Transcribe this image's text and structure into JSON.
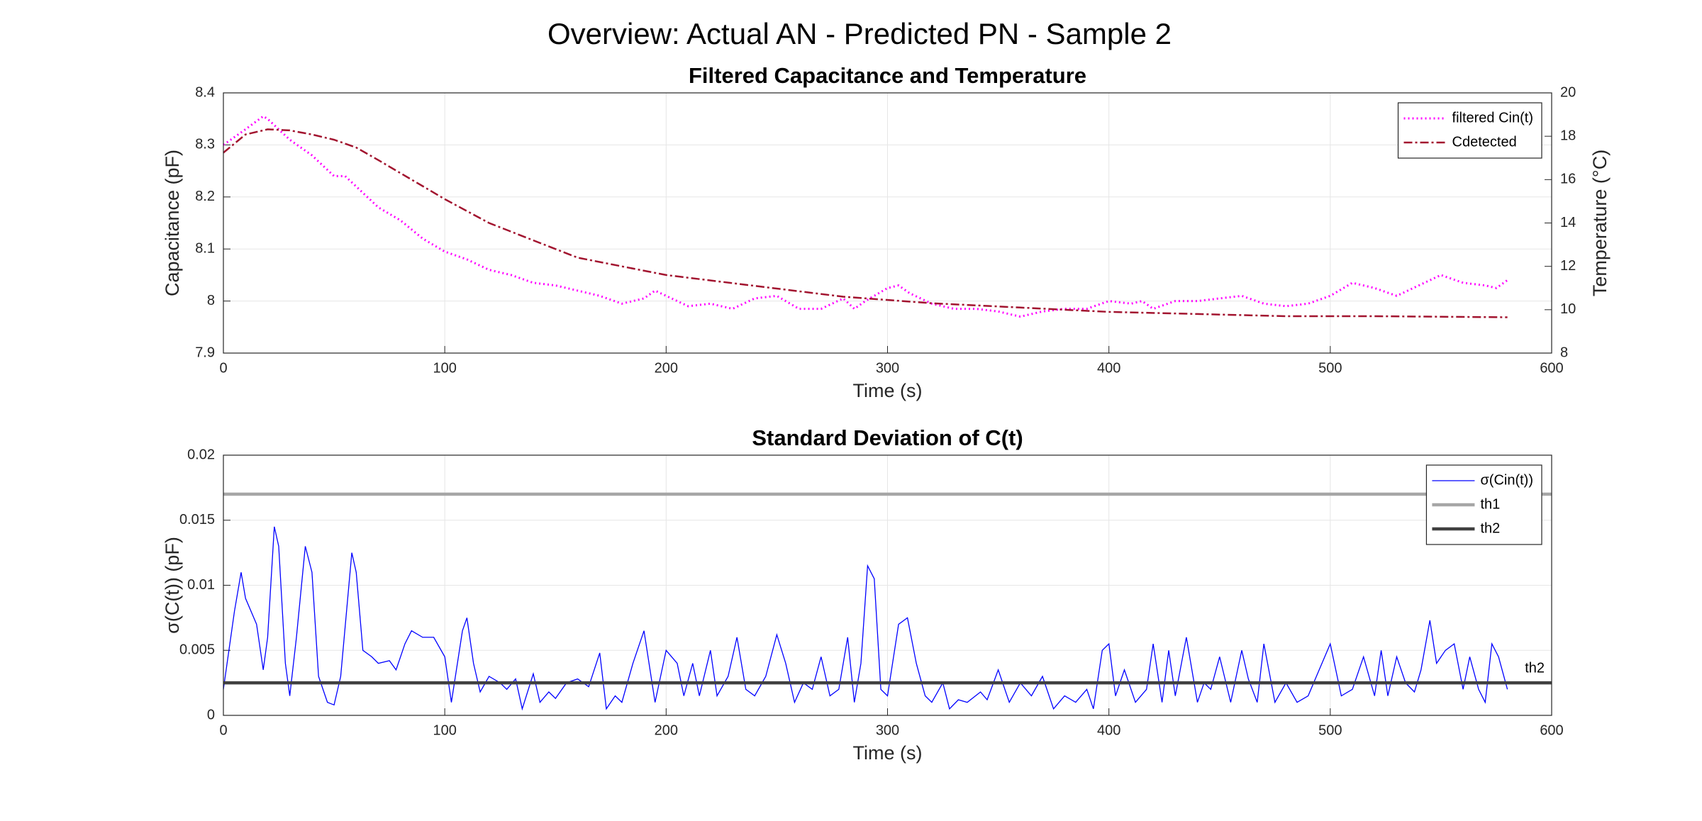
{
  "title": "Overview: Actual AN - Predicted PN - Sample 2",
  "chart_data": [
    {
      "type": "line",
      "title": "Filtered Capacitance and Temperature",
      "xlabel": "Time (s)",
      "ylabel": "Capacitance (pF)",
      "y2label": "Temperature (°C)",
      "xlim": [
        0,
        600
      ],
      "xticks": [
        0,
        100,
        200,
        300,
        400,
        500,
        600
      ],
      "ylim": [
        7.9,
        8.4
      ],
      "yticks": [
        7.9,
        8,
        8.1,
        8.2,
        8.3,
        8.4
      ],
      "y2lim": [
        8,
        20
      ],
      "y2ticks": [
        8,
        10,
        12,
        14,
        16,
        18,
        20
      ],
      "grid": true,
      "legend": "upper right",
      "series": [
        {
          "name": "filtered Cin(t)",
          "color": "#ff00ff",
          "style": "dotted",
          "x": [
            0,
            10,
            18,
            20,
            30,
            40,
            50,
            55,
            60,
            70,
            80,
            90,
            100,
            110,
            120,
            130,
            140,
            150,
            160,
            170,
            180,
            190,
            195,
            200,
            210,
            220,
            230,
            240,
            250,
            260,
            270,
            280,
            285,
            290,
            300,
            305,
            310,
            320,
            330,
            340,
            350,
            355,
            360,
            370,
            380,
            390,
            400,
            410,
            415,
            420,
            430,
            440,
            450,
            460,
            470,
            480,
            490,
            500,
            510,
            520,
            530,
            540,
            550,
            560,
            570,
            575,
            580
          ],
          "values": [
            8.3,
            8.33,
            8.355,
            8.35,
            8.31,
            8.28,
            8.24,
            8.24,
            8.22,
            8.18,
            8.155,
            8.12,
            8.095,
            8.08,
            8.06,
            8.05,
            8.035,
            8.03,
            8.02,
            8.01,
            7.995,
            8.005,
            8.02,
            8.01,
            7.99,
            7.995,
            7.985,
            8.005,
            8.01,
            7.985,
            7.985,
            8.005,
            7.985,
            8.0,
            8.025,
            8.03,
            8.015,
            7.995,
            7.985,
            7.985,
            7.98,
            7.975,
            7.97,
            7.98,
            7.985,
            7.985,
            8.0,
            7.995,
            8.0,
            7.985,
            8.0,
            8.0,
            8.005,
            8.01,
            7.995,
            7.99,
            7.995,
            8.01,
            8.035,
            8.025,
            8.01,
            8.03,
            8.05,
            8.035,
            8.03,
            8.025,
            8.04
          ]
        },
        {
          "name": "Cdetected",
          "color": "#a2142f",
          "style": "dashdot",
          "axis": "y2",
          "x": [
            0,
            10,
            20,
            30,
            40,
            50,
            60,
            70,
            80,
            90,
            100,
            120,
            140,
            160,
            180,
            200,
            240,
            280,
            320,
            360,
            400,
            440,
            480,
            520,
            580
          ],
          "values": [
            17.24,
            18.08,
            18.32,
            18.27,
            18.08,
            17.84,
            17.48,
            16.9,
            16.3,
            15.7,
            15.1,
            14.0,
            13.2,
            12.4,
            12.0,
            11.6,
            11.1,
            10.6,
            10.3,
            10.1,
            9.9,
            9.8,
            9.7,
            9.7,
            9.65
          ]
        }
      ]
    },
    {
      "type": "line",
      "title": "Standard Deviation of C(t)",
      "xlabel": "Time (s)",
      "ylabel": "σ(C(t)) (pF)",
      "xlim": [
        0,
        600
      ],
      "xticks": [
        0,
        100,
        200,
        300,
        400,
        500,
        600
      ],
      "ylim": [
        0,
        0.02
      ],
      "yticks": [
        0,
        0.005,
        0.01,
        0.015,
        0.02
      ],
      "grid": true,
      "legend": "upper right",
      "annotations": [
        "th2"
      ],
      "series": [
        {
          "name": "σ(Cin(t))",
          "color": "#0000ff",
          "style": "solid",
          "x": [
            0,
            5,
            8,
            10,
            15,
            18,
            20,
            23,
            25,
            28,
            30,
            33,
            37,
            40,
            43,
            47,
            50,
            53,
            58,
            60,
            63,
            67,
            70,
            75,
            78,
            82,
            85,
            90,
            95,
            100,
            103,
            108,
            110,
            113,
            116,
            120,
            125,
            128,
            132,
            135,
            140,
            143,
            147,
            150,
            155,
            160,
            165,
            170,
            173,
            177,
            180,
            185,
            190,
            195,
            200,
            205,
            208,
            212,
            215,
            220,
            223,
            228,
            232,
            236,
            240,
            245,
            250,
            254,
            258,
            262,
            266,
            270,
            274,
            278,
            282,
            285,
            288,
            291,
            294,
            297,
            300,
            305,
            309,
            313,
            317,
            320,
            325,
            328,
            332,
            336,
            342,
            345,
            350,
            355,
            360,
            365,
            370,
            375,
            380,
            385,
            390,
            393,
            397,
            400,
            403,
            407,
            412,
            417,
            420,
            424,
            427,
            430,
            435,
            440,
            443,
            446,
            450,
            455,
            460,
            463,
            467,
            470,
            475,
            480,
            485,
            490,
            495,
            500,
            505,
            510,
            515,
            520,
            523,
            526,
            530,
            534,
            538,
            541,
            545,
            548,
            552,
            556,
            560,
            563,
            567,
            570,
            573,
            576,
            580
          ],
          "values": [
            0.002,
            0.008,
            0.011,
            0.009,
            0.007,
            0.0035,
            0.006,
            0.0145,
            0.013,
            0.004,
            0.0015,
            0.006,
            0.013,
            0.011,
            0.003,
            0.001,
            0.0008,
            0.003,
            0.0125,
            0.011,
            0.005,
            0.0045,
            0.004,
            0.0042,
            0.0035,
            0.0055,
            0.0065,
            0.006,
            0.006,
            0.0045,
            0.001,
            0.0065,
            0.0075,
            0.004,
            0.0018,
            0.003,
            0.0025,
            0.002,
            0.0028,
            0.0005,
            0.0032,
            0.001,
            0.0018,
            0.0013,
            0.0025,
            0.0028,
            0.0022,
            0.0048,
            0.0005,
            0.0015,
            0.001,
            0.004,
            0.0065,
            0.001,
            0.005,
            0.004,
            0.0015,
            0.004,
            0.0015,
            0.005,
            0.0015,
            0.003,
            0.006,
            0.002,
            0.0015,
            0.003,
            0.0062,
            0.004,
            0.001,
            0.0025,
            0.002,
            0.0045,
            0.0015,
            0.002,
            0.006,
            0.001,
            0.004,
            0.0115,
            0.0105,
            0.002,
            0.0015,
            0.007,
            0.0075,
            0.004,
            0.0015,
            0.001,
            0.0025,
            0.0005,
            0.0012,
            0.001,
            0.0018,
            0.0012,
            0.0035,
            0.001,
            0.0025,
            0.0015,
            0.003,
            0.0005,
            0.0015,
            0.001,
            0.002,
            0.0005,
            0.005,
            0.0055,
            0.0015,
            0.0035,
            0.001,
            0.002,
            0.0055,
            0.001,
            0.005,
            0.0015,
            0.006,
            0.001,
            0.0025,
            0.002,
            0.0045,
            0.001,
            0.005,
            0.0028,
            0.001,
            0.0055,
            0.001,
            0.0025,
            0.001,
            0.0015,
            0.0035,
            0.0055,
            0.0015,
            0.002,
            0.0045,
            0.0015,
            0.005,
            0.0015,
            0.0045,
            0.0025,
            0.0018,
            0.0035,
            0.0073,
            0.004,
            0.005,
            0.0055,
            0.002,
            0.0045,
            0.002,
            0.001,
            0.0055,
            0.0045,
            0.002
          ]
        },
        {
          "name": "th1",
          "color": "#a6a6a6",
          "style": "thick",
          "hline": 0.017
        },
        {
          "name": "th2",
          "color": "#404040",
          "style": "thick",
          "hline": 0.0025
        }
      ]
    }
  ]
}
